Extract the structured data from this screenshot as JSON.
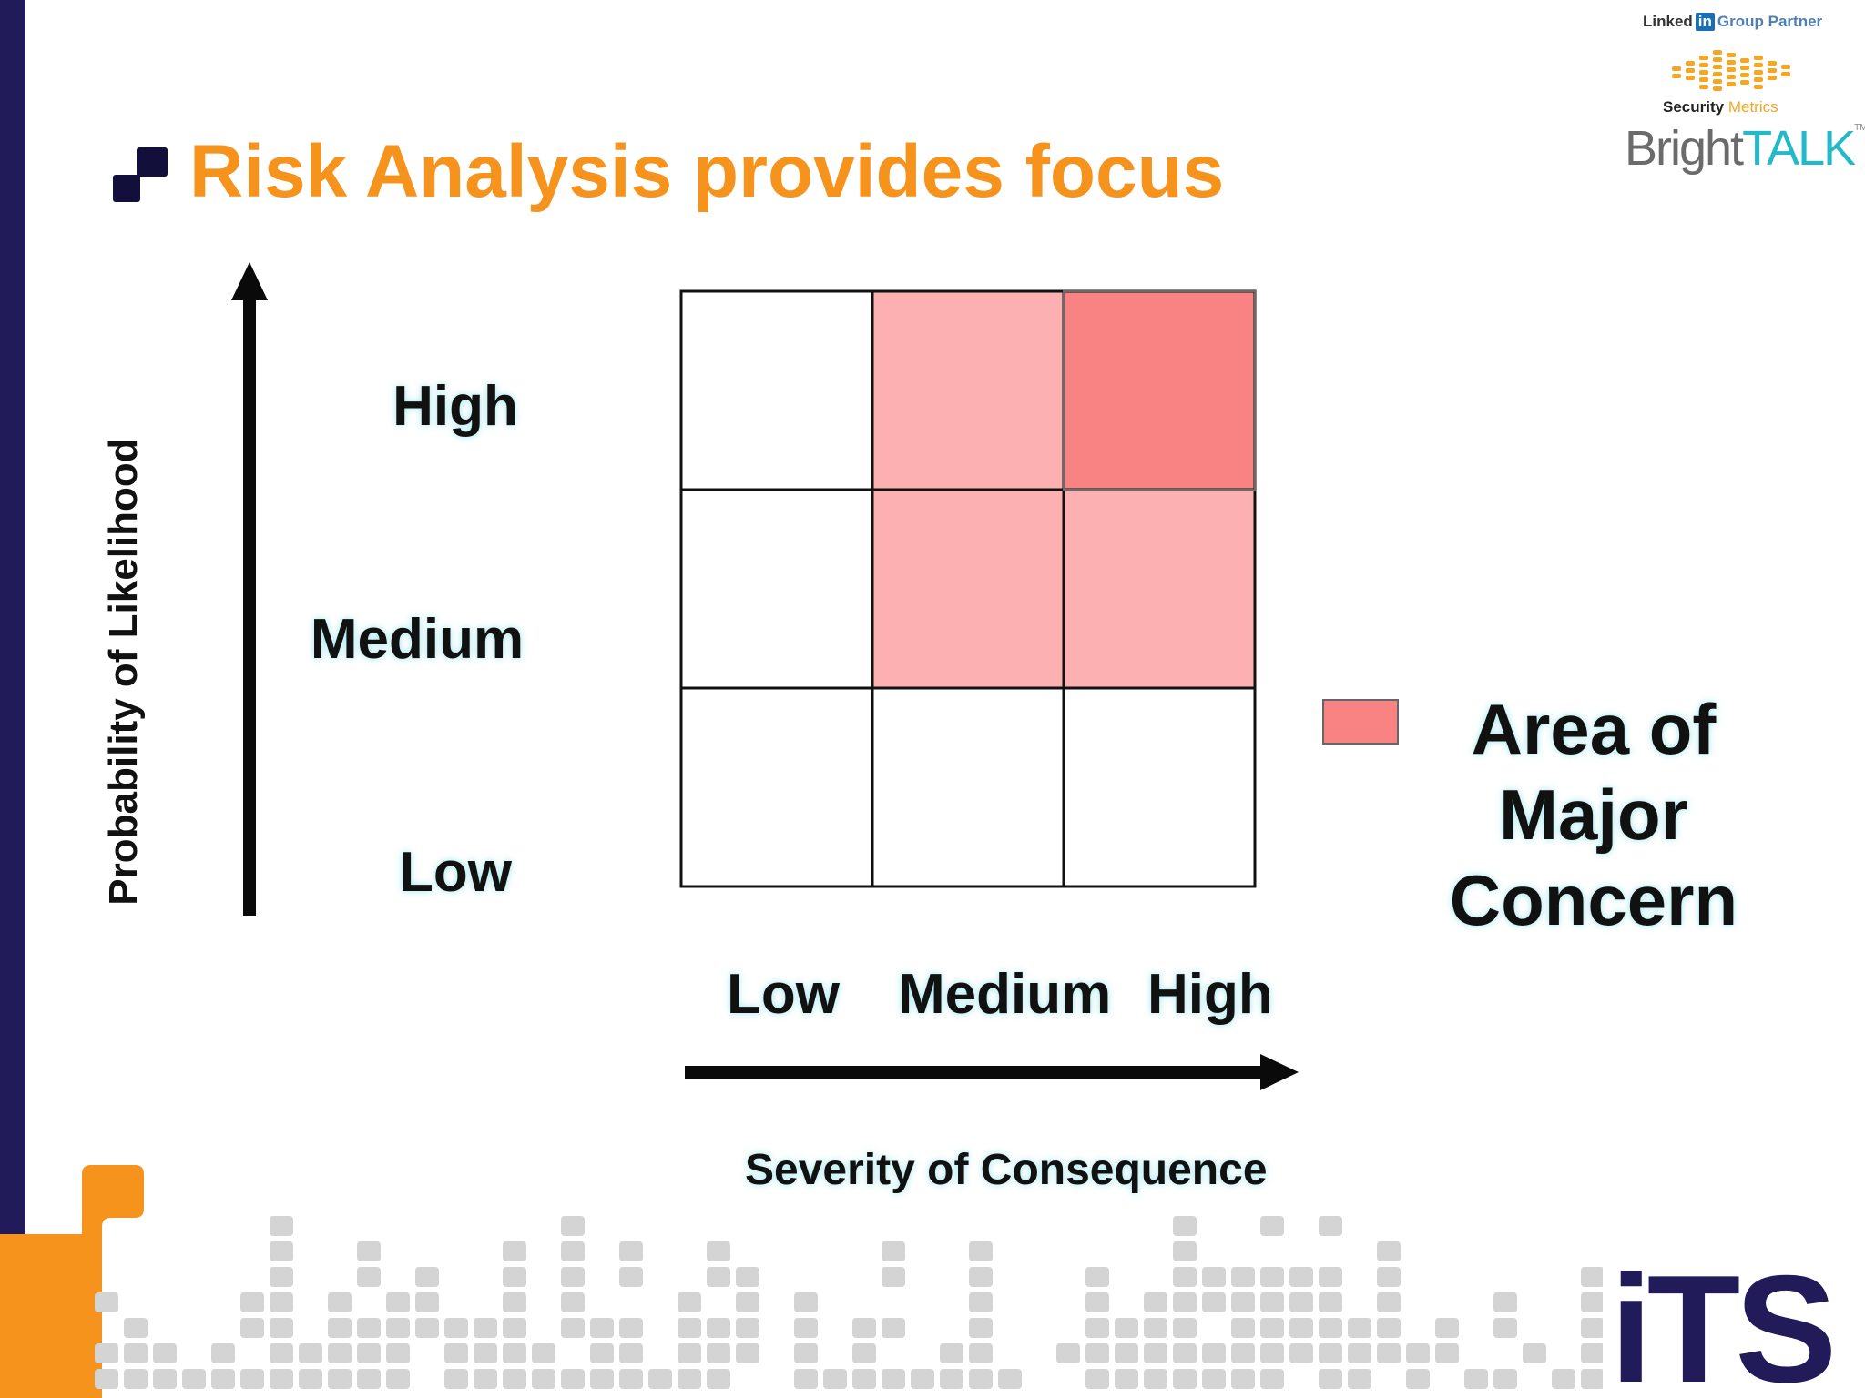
{
  "title": "Risk Analysis provides focus",
  "branding": {
    "linkedin_prefix": "Linked",
    "linkedin_in": "in",
    "linkedin_suffix": "Group Partner",
    "securitymetrics_security": "Security",
    "securitymetrics_metrics": "Metrics",
    "brighttalk_bright": "Bright",
    "brighttalk_talk": "TALK",
    "brighttalk_tm": "TM",
    "its": "iTS"
  },
  "colors": {
    "title": "#f5931d",
    "left_bar": "#221b5a",
    "cell_light": "#fdb0b2",
    "cell_dark": "#f98283",
    "grid_line": "#111111"
  },
  "diagram": {
    "y_axis_label": "Probability of Likelihood",
    "x_axis_label": "Severity of Consequence",
    "y_levels": [
      "High",
      "Medium",
      "Low"
    ],
    "x_levels": [
      "Low",
      "Medium",
      "High"
    ],
    "cells": [
      [
        "none",
        "light",
        "dark"
      ],
      [
        "none",
        "light",
        "light"
      ],
      [
        "none",
        "none",
        "none"
      ]
    ],
    "legend_label": "Area of Major Concern"
  }
}
